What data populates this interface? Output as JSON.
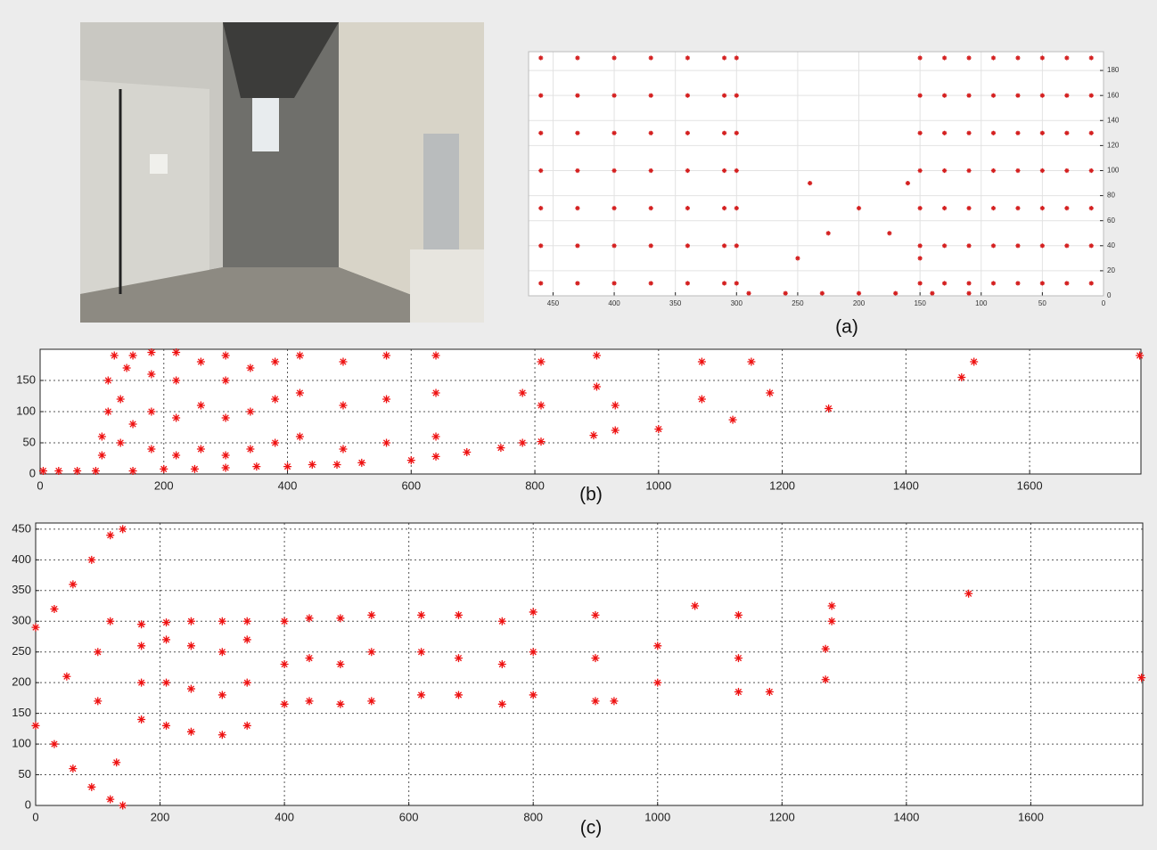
{
  "chart_data": [
    {
      "type": "scatter",
      "caption": "(a)",
      "xlim": [
        470,
        0
      ],
      "ylim": [
        0,
        195
      ],
      "xticks": [
        450,
        400,
        350,
        300,
        250,
        200,
        150,
        100,
        50,
        0
      ],
      "yticks": [
        0,
        20,
        40,
        60,
        80,
        100,
        120,
        140,
        160,
        180
      ],
      "y_axis_position": "right",
      "grid": true,
      "series": [
        {
          "color": "#d42020",
          "x": [
            460,
            460,
            460,
            460,
            460,
            460,
            460,
            430,
            430,
            430,
            430,
            430,
            430,
            430,
            400,
            400,
            400,
            400,
            400,
            400,
            400,
            370,
            370,
            370,
            370,
            370,
            370,
            370,
            340,
            340,
            340,
            340,
            340,
            340,
            340,
            310,
            310,
            310,
            310,
            310,
            310,
            310,
            300,
            300,
            300,
            300,
            300,
            300,
            300,
            150,
            150,
            150,
            150,
            150,
            150,
            150,
            130,
            130,
            130,
            130,
            130,
            130,
            130,
            110,
            110,
            110,
            110,
            110,
            110,
            110,
            90,
            90,
            90,
            90,
            90,
            90,
            90,
            70,
            70,
            70,
            70,
            70,
            70,
            70,
            50,
            50,
            50,
            50,
            50,
            50,
            50,
            30,
            30,
            30,
            30,
            30,
            30,
            30,
            10,
            10,
            10,
            10,
            10,
            10,
            10,
            290,
            260,
            230,
            200,
            170,
            140,
            110,
            250,
            150,
            225,
            175,
            200,
            240,
            160
          ],
          "y": [
            10,
            40,
            70,
            100,
            130,
            160,
            190,
            10,
            40,
            70,
            100,
            130,
            160,
            190,
            10,
            40,
            70,
            100,
            130,
            160,
            190,
            10,
            40,
            70,
            100,
            130,
            160,
            190,
            10,
            40,
            70,
            100,
            130,
            160,
            190,
            10,
            40,
            70,
            100,
            130,
            160,
            190,
            10,
            40,
            70,
            100,
            130,
            160,
            190,
            10,
            40,
            70,
            100,
            130,
            160,
            190,
            10,
            40,
            70,
            100,
            130,
            160,
            190,
            10,
            40,
            70,
            100,
            130,
            160,
            190,
            10,
            40,
            70,
            100,
            130,
            160,
            190,
            10,
            40,
            70,
            100,
            130,
            160,
            190,
            10,
            40,
            70,
            100,
            130,
            160,
            190,
            10,
            40,
            70,
            100,
            130,
            160,
            190,
            10,
            40,
            70,
            100,
            130,
            160,
            190,
            2,
            2,
            2,
            2,
            2,
            2,
            2,
            30,
            30,
            50,
            50,
            70,
            90,
            90
          ]
        }
      ]
    },
    {
      "type": "scatter",
      "caption": "(b)",
      "xlim": [
        0,
        1780
      ],
      "ylim": [
        0,
        200
      ],
      "xticks": [
        0,
        200,
        400,
        600,
        800,
        1000,
        1200,
        1400,
        1600
      ],
      "yticks": [
        0,
        50,
        100,
        150
      ],
      "y_axis_position": "left",
      "grid": true,
      "series": [
        {
          "color": "#ee1111",
          "x": [
            5,
            30,
            60,
            90,
            150,
            200,
            250,
            300,
            350,
            400,
            440,
            480,
            520,
            600,
            640,
            690,
            745,
            810,
            895,
            1000,
            1120,
            1275,
            100,
            100,
            110,
            110,
            120,
            130,
            130,
            140,
            150,
            150,
            180,
            180,
            180,
            180,
            220,
            220,
            220,
            220,
            260,
            260,
            260,
            300,
            300,
            300,
            300,
            340,
            340,
            340,
            380,
            380,
            380,
            420,
            420,
            420,
            490,
            490,
            490,
            560,
            560,
            560,
            640,
            640,
            640,
            780,
            780,
            810,
            810,
            900,
            900,
            930,
            930,
            1070,
            1070,
            1150,
            1180,
            1490,
            1510,
            1778
          ],
          "y": [
            5,
            5,
            5,
            5,
            5,
            8,
            8,
            10,
            12,
            12,
            15,
            15,
            18,
            22,
            28,
            35,
            42,
            52,
            62,
            72,
            87,
            105,
            30,
            60,
            100,
            150,
            190,
            50,
            120,
            170,
            80,
            190,
            40,
            100,
            160,
            195,
            30,
            90,
            150,
            195,
            40,
            110,
            180,
            30,
            90,
            150,
            190,
            40,
            100,
            170,
            50,
            120,
            180,
            60,
            130,
            190,
            40,
            110,
            180,
            50,
            120,
            190,
            60,
            130,
            190,
            50,
            130,
            110,
            180,
            140,
            190,
            70,
            110,
            120,
            180,
            180,
            130,
            155,
            180,
            190
          ]
        }
      ]
    },
    {
      "type": "scatter",
      "caption": "(c)",
      "xlim": [
        0,
        1780
      ],
      "ylim": [
        0,
        460
      ],
      "xticks": [
        0,
        200,
        400,
        600,
        800,
        1000,
        1200,
        1400,
        1600
      ],
      "yticks": [
        0,
        50,
        100,
        150,
        200,
        250,
        300,
        350,
        400,
        450
      ],
      "y_axis_position": "left",
      "grid": true,
      "series": [
        {
          "color": "#ee1111",
          "x": [
            0,
            0,
            30,
            30,
            60,
            60,
            90,
            90,
            120,
            120,
            140,
            140,
            50,
            100,
            100,
            130,
            120,
            170,
            170,
            170,
            170,
            210,
            210,
            210,
            210,
            250,
            250,
            250,
            250,
            300,
            300,
            300,
            300,
            340,
            340,
            340,
            340,
            400,
            400,
            400,
            440,
            440,
            440,
            490,
            490,
            490,
            540,
            540,
            540,
            620,
            620,
            620,
            680,
            680,
            680,
            750,
            750,
            750,
            800,
            800,
            800,
            900,
            900,
            900,
            930,
            1000,
            1000,
            1060,
            1130,
            1130,
            1130,
            1180,
            1270,
            1270,
            1280,
            1280,
            1500,
            1778
          ],
          "y": [
            290,
            130,
            320,
            100,
            360,
            60,
            400,
            30,
            440,
            10,
            450,
            0,
            210,
            250,
            170,
            70,
            300,
            140,
            200,
            260,
            295,
            130,
            200,
            270,
            298,
            120,
            190,
            260,
            300,
            115,
            180,
            250,
            300,
            130,
            200,
            270,
            300,
            165,
            230,
            300,
            170,
            240,
            305,
            165,
            230,
            305,
            170,
            250,
            310,
            180,
            250,
            310,
            180,
            240,
            310,
            165,
            230,
            300,
            180,
            250,
            315,
            170,
            240,
            310,
            170,
            200,
            260,
            325,
            185,
            240,
            310,
            185,
            205,
            255,
            300,
            325,
            345,
            208
          ]
        }
      ]
    }
  ]
}
